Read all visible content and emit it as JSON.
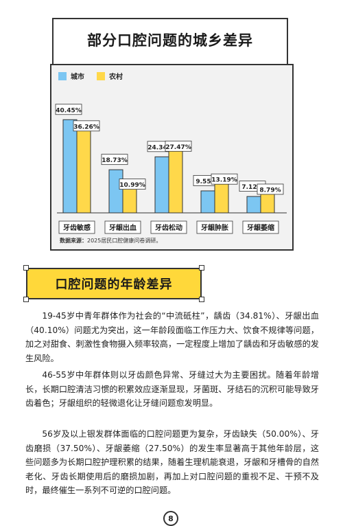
{
  "header": {
    "title": "部分口腔问题的城乡差异"
  },
  "chart_data": {
    "type": "bar",
    "categories": [
      "牙齿敏感",
      "牙龈出血",
      "牙齿松动",
      "牙龈肿胀",
      "牙龈萎缩"
    ],
    "series": [
      {
        "name": "城市",
        "values": [
          40.45,
          18.73,
          24.34,
          9.55,
          7.12
        ],
        "labels": [
          "40.45%",
          "18.73%",
          "24.34%",
          "9.55%",
          "7.12%"
        ]
      },
      {
        "name": "农村",
        "values": [
          36.26,
          10.99,
          27.47,
          13.19,
          8.79
        ],
        "labels": [
          "36.26%",
          "10.99%",
          "27.47%",
          "13.19%",
          "8.79%"
        ]
      }
    ],
    "ylim": [
      0,
      45
    ],
    "colors": {
      "城市": "#7cc6f2",
      "农村": "#ffd84a"
    },
    "source_label": "数据来源：",
    "source_text": "2025居民口腔健康问卷调研。"
  },
  "section": {
    "title": "口腔问题的年龄差异"
  },
  "paragraphs": [
    "19-45岁中青年群体作为社会的“中流砥柱”，龋齿（34.81%）、牙龈出血（40.10%）问题尤为突出，这一年龄段面临工作压力大、饮食不规律等问题，加之对甜食、刺激性食物摄入频率较高，一定程度上增加了龋齿和牙齿敏感的发生风险。",
    "46-55岁中年群体则以牙齿颜色异常、牙缝过大为主要困扰。随着年龄增长，长期口腔清洁习惯的积累效应逐渐显现，牙菌斑、牙结石的沉积可能导致牙齿着色；牙龈组织的轻微退化让牙缝问题愈发明显。",
    "56岁及以上银发群体面临的口腔问题更为复杂，牙齿缺失（50.00%）、牙齿磨损（37.50%）、牙龈萎缩（27.50%）的发生率显著高于其他年龄层，这些问题多为长期口腔护理积累的结果，随着生理机能衰退，牙龈和牙槽骨的自然老化、牙齿长期使用后的磨损加剧，再加上对口腔问题的重视不足、干预不及时，最终催生一系列不可逆的口腔问题。"
  ],
  "footer": {
    "page": "8"
  }
}
